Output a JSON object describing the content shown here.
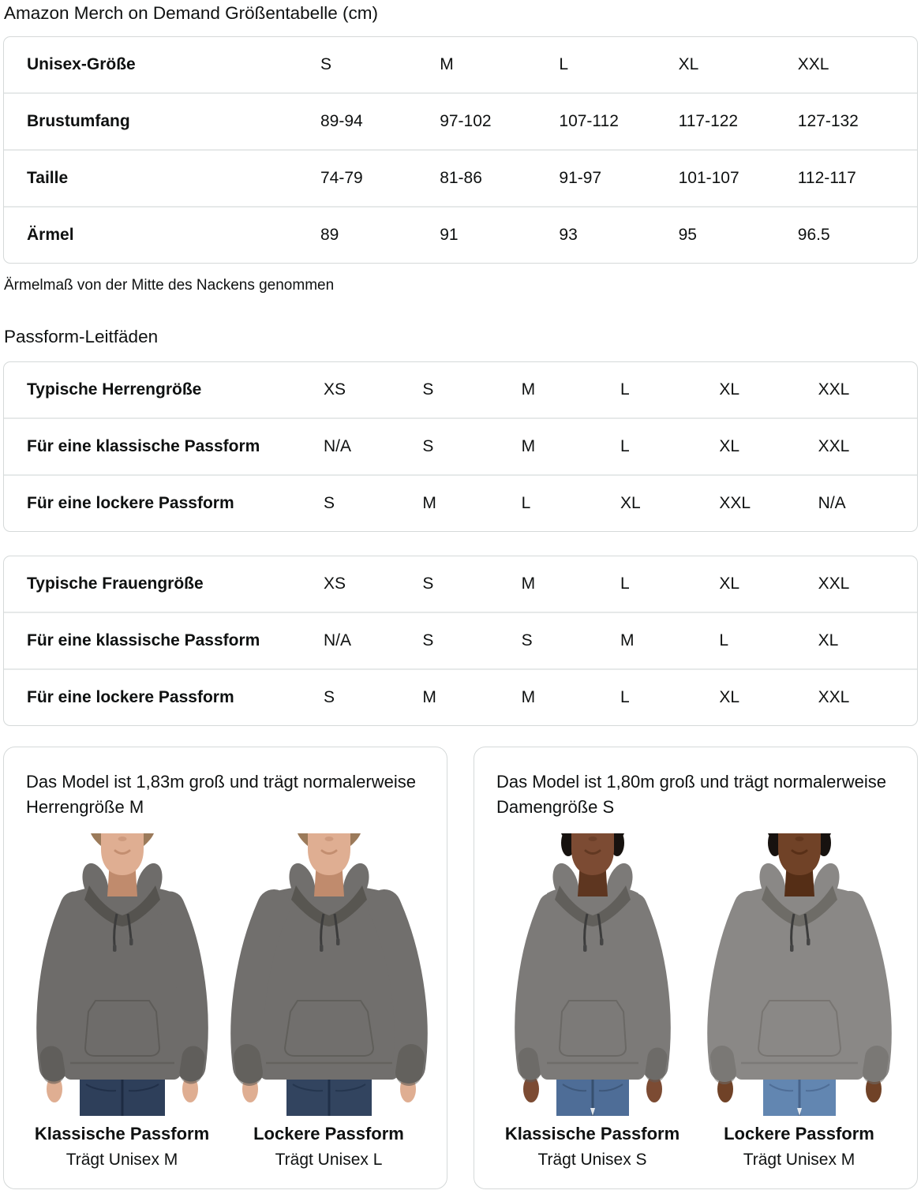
{
  "page": {
    "title": "Amazon Merch on Demand Größentabelle (cm)",
    "sleeve_note": "Ärmelmaß von der Mitte des Nackens genommen",
    "fit_guides_heading": "Passform-Leitfäden"
  },
  "size_table": {
    "rows": [
      {
        "label": "Unisex-Größe",
        "values": [
          "S",
          "M",
          "L",
          "XL",
          "XXL"
        ]
      },
      {
        "label": "Brustumfang",
        "values": [
          "89-94",
          "97-102",
          "107-112",
          "117-122",
          "127-132"
        ]
      },
      {
        "label": "Taille",
        "values": [
          "74-79",
          "81-86",
          "91-97",
          "101-107",
          "112-117"
        ]
      },
      {
        "label": "Ärmel",
        "values": [
          "89",
          "91",
          "93",
          "95",
          "96.5"
        ]
      }
    ]
  },
  "men_fit_table": {
    "rows": [
      {
        "label": "Typische Herrengröße",
        "values": [
          "XS",
          "S",
          "M",
          "L",
          "XL",
          "XXL"
        ]
      },
      {
        "label": "Für eine klassische Passform",
        "values": [
          "N/A",
          "S",
          "M",
          "L",
          "XL",
          "XXL"
        ]
      },
      {
        "label": "Für eine lockere Passform",
        "values": [
          "S",
          "M",
          "L",
          "XL",
          "XXL",
          "N/A"
        ]
      }
    ]
  },
  "women_fit_table": {
    "rows": [
      {
        "label": "Typische Frauengröße",
        "values": [
          "XS",
          "S",
          "M",
          "L",
          "XL",
          "XXL"
        ]
      },
      {
        "label": "Für eine klassische Passform",
        "values": [
          "N/A",
          "S",
          "S",
          "M",
          "L",
          "XL"
        ]
      },
      {
        "label": "Für eine lockere Passform",
        "values": [
          "S",
          "M",
          "M",
          "L",
          "XL",
          "XXL"
        ]
      }
    ]
  },
  "cards": [
    {
      "description": "Das Model ist 1,83m groß und trägt normalerweise Herrengröße M",
      "models": [
        {
          "fit_label": "Klassische Passform",
          "size_label": "Trägt Unisex M",
          "figure": "male-classic",
          "colors": {
            "skin": "#dfae92",
            "skin_shade": "#c08b6d",
            "hair": "#9b7a5a",
            "hoodie": "#6e6c6a",
            "hoodie_shade": "#55534f",
            "jeans": "#2e3f5a",
            "jeans_shade": "#1d2b42"
          }
        },
        {
          "fit_label": "Lockere Passform",
          "size_label": "Trägt Unisex L",
          "figure": "male-loose",
          "colors": {
            "skin": "#dfae92",
            "skin_shade": "#c08b6d",
            "hair": "#9b7a5a",
            "hoodie": "#716f6d",
            "hoodie_shade": "#585651",
            "jeans": "#32445f",
            "jeans_shade": "#203048"
          }
        }
      ]
    },
    {
      "description": "Das Model ist 1,80m groß und trägt normalerweise Damengröße S",
      "models": [
        {
          "fit_label": "Klassische Passform",
          "size_label": "Trägt Unisex S",
          "figure": "female-classic",
          "colors": {
            "skin": "#7c4b33",
            "skin_shade": "#5e3620",
            "hair": "#17120f",
            "hoodie": "#7c7a78",
            "hoodie_shade": "#615f5b",
            "jeans": "#4e6d97",
            "jeans_shade": "#37506f"
          }
        },
        {
          "fit_label": "Lockere Passform",
          "size_label": "Trägt Unisex M",
          "figure": "female-loose",
          "colors": {
            "skin": "#704227",
            "skin_shade": "#552e16",
            "hair": "#17120f",
            "hoodie": "#8a8886",
            "hoodie_shade": "#6e6c67",
            "jeans": "#6286b1",
            "jeans_shade": "#47648b"
          }
        }
      ]
    }
  ],
  "colors": {
    "text": "#0f1111",
    "table_border": "#d5d9d9",
    "row_divider": "#e6e9e9",
    "card_border": "#d5d9d9",
    "background": "#ffffff"
  }
}
